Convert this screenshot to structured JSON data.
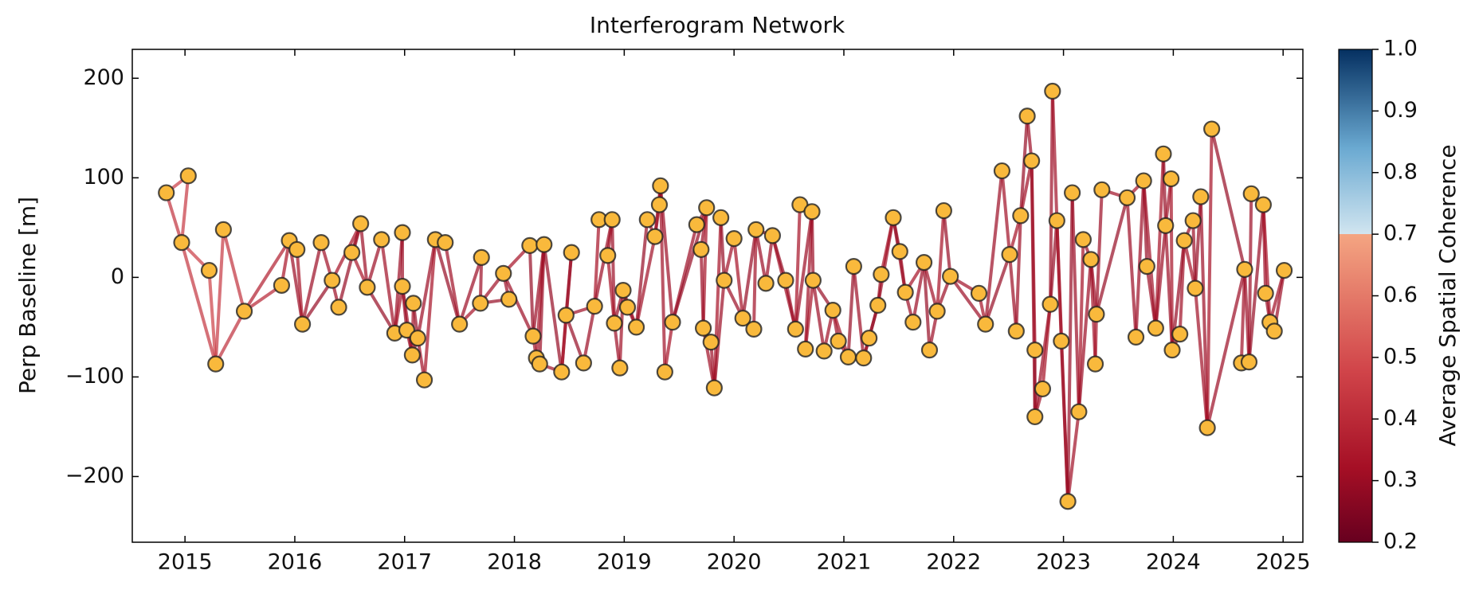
{
  "chart_data": {
    "type": "network",
    "title": "Interferogram Network",
    "ylabel": "Perp Baseline [m]",
    "x": [
      2014.83,
      2015.03,
      2014.97,
      2015.22,
      2015.28,
      2015.35,
      2015.54,
      2015.88,
      2015.95,
      2016.02,
      2016.07,
      2016.24,
      2016.34,
      2016.4,
      2016.6,
      2016.52,
      2016.66,
      2016.79,
      2016.91,
      2016.98,
      2016.98,
      2017.02,
      2017.07,
      2017.08,
      2017.12,
      2017.18,
      2017.28,
      2017.37,
      2017.5,
      2017.7,
      2017.69,
      2017.95,
      2017.9,
      2018.14,
      2018.17,
      2018.2,
      2018.27,
      2018.23,
      2018.43,
      2018.52,
      2018.47,
      2018.63,
      2018.73,
      2018.77,
      2018.89,
      2018.85,
      2018.91,
      2018.96,
      2018.99,
      2019.03,
      2019.11,
      2019.21,
      2019.28,
      2019.32,
      2019.33,
      2019.37,
      2019.44,
      2019.66,
      2019.75,
      2019.7,
      2019.72,
      2019.79,
      2019.82,
      2019.88,
      2019.91,
      2020.0,
      2020.08,
      2020.18,
      2020.2,
      2020.29,
      2020.35,
      2020.47,
      2020.56,
      2020.6,
      2020.71,
      2020.65,
      2020.72,
      2020.82,
      2020.9,
      2020.95,
      2021.04,
      2021.09,
      2021.18,
      2021.23,
      2021.31,
      2021.34,
      2021.45,
      2021.51,
      2021.56,
      2021.63,
      2021.73,
      2021.78,
      2021.85,
      2021.91,
      2021.97,
      2022.23,
      2022.29,
      2022.44,
      2022.51,
      2022.57,
      2022.61,
      2022.67,
      2022.71,
      2022.74,
      2022.74,
      2022.81,
      2022.88,
      2022.9,
      2022.94,
      2022.98,
      2023.04,
      2023.08,
      2023.14,
      2023.18,
      2023.25,
      2023.29,
      2023.3,
      2023.35,
      2023.58,
      2023.66,
      2023.73,
      2023.76,
      2023.84,
      2023.91,
      2023.93,
      2023.98,
      2023.99,
      2024.06,
      2024.1,
      2024.18,
      2024.2,
      2024.25,
      2024.31,
      2024.35,
      2024.65,
      2024.62,
      2024.69,
      2024.71,
      2024.82,
      2024.84,
      2024.88,
      2024.92,
      2025.01
    ],
    "values": [
      85,
      102,
      35,
      7,
      -87,
      48,
      -34,
      -8,
      37,
      28,
      -47,
      35,
      -3,
      -30,
      54,
      25,
      -10,
      38,
      -56,
      45,
      -9,
      -53,
      -78,
      -26,
      -61,
      -103,
      38,
      35,
      -47,
      20,
      -26,
      -22,
      4,
      32,
      -59,
      -81,
      33,
      -87,
      -95,
      25,
      -38,
      -86,
      -29,
      58,
      58,
      22,
      -46,
      -91,
      -13,
      -30,
      -50,
      58,
      41,
      73,
      92,
      -95,
      -45,
      53,
      70,
      28,
      -51,
      -65,
      -111,
      60,
      -3,
      39,
      -41,
      -52,
      48,
      -6,
      42,
      -3,
      -52,
      73,
      66,
      -72,
      -3,
      -74,
      -33,
      -64,
      -80,
      11,
      -81,
      -61,
      -28,
      3,
      60,
      26,
      -15,
      -45,
      15,
      -73,
      -34,
      67,
      1,
      -16,
      -47,
      107,
      23,
      -54,
      62,
      162,
      117,
      -73,
      -140,
      -112,
      -27,
      187,
      57,
      -64,
      -225,
      85,
      -135,
      38,
      18,
      -87,
      -37,
      88,
      80,
      -60,
      97,
      11,
      -51,
      124,
      52,
      99,
      -73,
      -57,
      37,
      57,
      -11,
      81,
      -151,
      149,
      8,
      -86,
      -85,
      84,
      73,
      -16,
      -45,
      -54,
      7
    ],
    "edges": [
      [
        0,
        1,
        0.45
      ],
      [
        0,
        2,
        0.42
      ],
      [
        1,
        2,
        0.44
      ],
      [
        2,
        3,
        0.45
      ],
      [
        2,
        4,
        0.43
      ],
      [
        3,
        4,
        0.46
      ],
      [
        4,
        5,
        0.44
      ],
      [
        4,
        6,
        0.41
      ],
      [
        5,
        6,
        0.42
      ],
      [
        6,
        7,
        0.38
      ],
      [
        6,
        8,
        0.36
      ],
      [
        7,
        8,
        0.33
      ],
      [
        8,
        9,
        0.31
      ],
      [
        8,
        10,
        0.3
      ],
      [
        9,
        10,
        0.32
      ],
      [
        10,
        11,
        0.3
      ],
      [
        10,
        12,
        0.29
      ],
      [
        11,
        12,
        0.31
      ],
      [
        12,
        13,
        0.3
      ],
      [
        12,
        14,
        0.32
      ],
      [
        13,
        14,
        0.29
      ],
      [
        14,
        15,
        0.31
      ],
      [
        14,
        16,
        0.3
      ],
      [
        15,
        16,
        0.33
      ],
      [
        16,
        17,
        0.3
      ],
      [
        16,
        18,
        0.29
      ],
      [
        17,
        18,
        0.31
      ],
      [
        18,
        19,
        0.3
      ],
      [
        18,
        20,
        0.32
      ],
      [
        19,
        20,
        0.3
      ],
      [
        20,
        21,
        0.29
      ],
      [
        20,
        22,
        0.31
      ],
      [
        21,
        22,
        0.3
      ],
      [
        22,
        23,
        0.32
      ],
      [
        22,
        24,
        0.3
      ],
      [
        23,
        24,
        0.29
      ],
      [
        24,
        25,
        0.31
      ],
      [
        24,
        26,
        0.3
      ],
      [
        25,
        26,
        0.32
      ],
      [
        26,
        27,
        0.3
      ],
      [
        26,
        28,
        0.29
      ],
      [
        27,
        28,
        0.31
      ],
      [
        28,
        29,
        0.3
      ],
      [
        28,
        30,
        0.32
      ],
      [
        29,
        30,
        0.3
      ],
      [
        30,
        31,
        0.29
      ],
      [
        30,
        32,
        0.31
      ],
      [
        31,
        32,
        0.3
      ],
      [
        32,
        33,
        0.32
      ],
      [
        32,
        34,
        0.3
      ],
      [
        33,
        34,
        0.29
      ],
      [
        34,
        35,
        0.31
      ],
      [
        34,
        36,
        0.3
      ],
      [
        35,
        36,
        0.32
      ],
      [
        36,
        37,
        0.3
      ],
      [
        36,
        38,
        0.29
      ],
      [
        37,
        38,
        0.31
      ],
      [
        38,
        39,
        0.3
      ],
      [
        38,
        40,
        0.32
      ],
      [
        39,
        40,
        0.3
      ],
      [
        40,
        41,
        0.29
      ],
      [
        40,
        42,
        0.31
      ],
      [
        41,
        42,
        0.3
      ],
      [
        42,
        43,
        0.32
      ],
      [
        42,
        44,
        0.3
      ],
      [
        43,
        44,
        0.29
      ],
      [
        44,
        45,
        0.31
      ],
      [
        44,
        46,
        0.3
      ],
      [
        45,
        46,
        0.32
      ],
      [
        46,
        47,
        0.3
      ],
      [
        46,
        48,
        0.29
      ],
      [
        47,
        48,
        0.31
      ],
      [
        48,
        49,
        0.3
      ],
      [
        48,
        50,
        0.32
      ],
      [
        49,
        50,
        0.3
      ],
      [
        50,
        51,
        0.29
      ],
      [
        50,
        52,
        0.31
      ],
      [
        51,
        52,
        0.3
      ],
      [
        52,
        53,
        0.32
      ],
      [
        52,
        54,
        0.3
      ],
      [
        53,
        54,
        0.29
      ],
      [
        54,
        55,
        0.31
      ],
      [
        54,
        56,
        0.3
      ],
      [
        55,
        56,
        0.32
      ],
      [
        56,
        57,
        0.3
      ],
      [
        56,
        58,
        0.29
      ],
      [
        57,
        58,
        0.31
      ],
      [
        58,
        59,
        0.3
      ],
      [
        58,
        60,
        0.32
      ],
      [
        59,
        60,
        0.3
      ],
      [
        60,
        61,
        0.29
      ],
      [
        60,
        62,
        0.31
      ],
      [
        61,
        62,
        0.3
      ],
      [
        62,
        63,
        0.32
      ],
      [
        62,
        64,
        0.3
      ],
      [
        63,
        64,
        0.29
      ],
      [
        64,
        65,
        0.31
      ],
      [
        64,
        66,
        0.3
      ],
      [
        65,
        66,
        0.32
      ],
      [
        66,
        67,
        0.3
      ],
      [
        66,
        68,
        0.29
      ],
      [
        67,
        68,
        0.31
      ],
      [
        68,
        69,
        0.3
      ],
      [
        68,
        70,
        0.32
      ],
      [
        69,
        70,
        0.3
      ],
      [
        70,
        71,
        0.29
      ],
      [
        70,
        72,
        0.31
      ],
      [
        71,
        72,
        0.3
      ],
      [
        72,
        73,
        0.32
      ],
      [
        72,
        74,
        0.3
      ],
      [
        73,
        74,
        0.29
      ],
      [
        74,
        75,
        0.31
      ],
      [
        74,
        76,
        0.3
      ],
      [
        75,
        76,
        0.32
      ],
      [
        76,
        77,
        0.3
      ],
      [
        76,
        78,
        0.29
      ],
      [
        77,
        78,
        0.31
      ],
      [
        78,
        79,
        0.3
      ],
      [
        78,
        80,
        0.32
      ],
      [
        79,
        80,
        0.3
      ],
      [
        80,
        81,
        0.29
      ],
      [
        80,
        82,
        0.31
      ],
      [
        81,
        82,
        0.3
      ],
      [
        82,
        83,
        0.32
      ],
      [
        82,
        84,
        0.3
      ],
      [
        83,
        84,
        0.29
      ],
      [
        84,
        85,
        0.31
      ],
      [
        84,
        86,
        0.3
      ],
      [
        85,
        86,
        0.32
      ],
      [
        86,
        87,
        0.3
      ],
      [
        86,
        88,
        0.29
      ],
      [
        87,
        88,
        0.31
      ],
      [
        88,
        89,
        0.3
      ],
      [
        88,
        90,
        0.32
      ],
      [
        89,
        90,
        0.3
      ],
      [
        90,
        91,
        0.29
      ],
      [
        90,
        92,
        0.31
      ],
      [
        91,
        92,
        0.3
      ],
      [
        92,
        93,
        0.32
      ],
      [
        92,
        94,
        0.3
      ],
      [
        93,
        94,
        0.29
      ],
      [
        94,
        95,
        0.31
      ],
      [
        94,
        96,
        0.3
      ],
      [
        95,
        96,
        0.32
      ],
      [
        96,
        97,
        0.3
      ],
      [
        96,
        98,
        0.29
      ],
      [
        97,
        98,
        0.31
      ],
      [
        98,
        99,
        0.3
      ],
      [
        98,
        100,
        0.32
      ],
      [
        99,
        100,
        0.3
      ],
      [
        100,
        101,
        0.29
      ],
      [
        100,
        102,
        0.31
      ],
      [
        101,
        102,
        0.3
      ],
      [
        102,
        103,
        0.32
      ],
      [
        102,
        104,
        0.3
      ],
      [
        103,
        104,
        0.29
      ],
      [
        104,
        105,
        0.31
      ],
      [
        104,
        106,
        0.3
      ],
      [
        105,
        106,
        0.32
      ],
      [
        106,
        107,
        0.3
      ],
      [
        106,
        108,
        0.29
      ],
      [
        107,
        108,
        0.31
      ],
      [
        108,
        109,
        0.3
      ],
      [
        108,
        110,
        0.32
      ],
      [
        109,
        110,
        0.3
      ],
      [
        110,
        111,
        0.29
      ],
      [
        110,
        112,
        0.31
      ],
      [
        111,
        112,
        0.3
      ],
      [
        112,
        113,
        0.32
      ],
      [
        112,
        114,
        0.3
      ],
      [
        113,
        114,
        0.29
      ],
      [
        114,
        115,
        0.31
      ],
      [
        114,
        116,
        0.3
      ],
      [
        115,
        116,
        0.32
      ],
      [
        116,
        117,
        0.3
      ],
      [
        116,
        118,
        0.29
      ],
      [
        117,
        118,
        0.31
      ],
      [
        118,
        119,
        0.3
      ],
      [
        118,
        120,
        0.32
      ],
      [
        119,
        120,
        0.3
      ],
      [
        120,
        121,
        0.29
      ],
      [
        120,
        122,
        0.31
      ],
      [
        121,
        122,
        0.3
      ],
      [
        122,
        123,
        0.32
      ],
      [
        122,
        124,
        0.3
      ],
      [
        123,
        124,
        0.29
      ],
      [
        124,
        125,
        0.31
      ],
      [
        124,
        126,
        0.3
      ],
      [
        125,
        126,
        0.32
      ],
      [
        126,
        127,
        0.3
      ],
      [
        126,
        128,
        0.29
      ],
      [
        127,
        128,
        0.31
      ],
      [
        128,
        129,
        0.3
      ],
      [
        128,
        130,
        0.32
      ],
      [
        129,
        130,
        0.3
      ],
      [
        130,
        131,
        0.29
      ],
      [
        130,
        132,
        0.31
      ],
      [
        131,
        132,
        0.3
      ],
      [
        132,
        133,
        0.32
      ],
      [
        132,
        134,
        0.3
      ],
      [
        133,
        134,
        0.29
      ],
      [
        134,
        135,
        0.31
      ],
      [
        134,
        136,
        0.3
      ],
      [
        135,
        136,
        0.32
      ],
      [
        136,
        137,
        0.3
      ],
      [
        136,
        138,
        0.29
      ],
      [
        137,
        138,
        0.31
      ],
      [
        138,
        139,
        0.3
      ],
      [
        138,
        140,
        0.32
      ],
      [
        139,
        140,
        0.3
      ],
      [
        140,
        141,
        0.29
      ],
      [
        140,
        142,
        0.31
      ],
      [
        141,
        142,
        0.3
      ]
    ],
    "xlim": [
      2014.52,
      2025.18
    ],
    "ylim": [
      -266,
      229
    ],
    "xticks": [
      2015,
      2016,
      2017,
      2018,
      2019,
      2020,
      2021,
      2022,
      2023,
      2024,
      2025
    ],
    "yticks": [
      {
        "value": -200,
        "label": "−200"
      },
      {
        "value": -100,
        "label": "−100"
      },
      0,
      100,
      200
    ],
    "node_color": "#f9b93c",
    "colorbar": {
      "label": "Average Spatial Coherence",
      "lim": [
        0.2,
        1.0
      ],
      "colormap": "RdBu",
      "ticks": [
        0.2,
        0.3,
        0.4,
        0.5,
        0.6,
        0.7,
        0.8,
        0.9,
        {
          "value": 1.0,
          "label": "1.0"
        }
      ]
    }
  }
}
